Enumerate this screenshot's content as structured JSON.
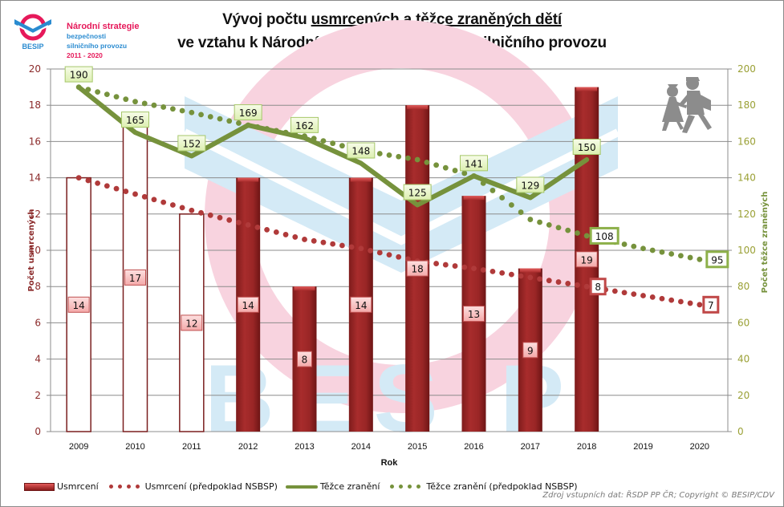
{
  "logo": {
    "brand": "BESIP",
    "line1": "Národní strategie",
    "line2": "bezpečnosti",
    "line3": "silničního provozu",
    "line4": "2011 - 2020"
  },
  "title_line1_plain": "Vývoj počtu ",
  "title_line1_underlined": "usmrcených a těžce zraněných dětí",
  "title_line2": "ve vztahu k Národní strategii bezpečnosti silničního provozu",
  "watermark_text": "BESIP",
  "source_note": "Zdroj vstupních dat: ŘSDP PP ČR; Copyright © BESIP/CDV",
  "colors": {
    "bar_fill": "#9b2424",
    "bar_outline": "#7a1f1f",
    "killed_forecast": "#b03a3a",
    "injured": "#76923c",
    "injured_label_bg": "#ebf5cf",
    "killed_label_bg": "#f7c1c1",
    "left_axis_text": "#8b2a2a",
    "right_axis_text": "#9aa035"
  },
  "chart_data": {
    "type": "bar",
    "title": "Vývoj počtu usmrcených a těžce zraněných dětí ve vztahu k Národní strategii bezpečnosti silničního provozu",
    "xlabel": "Rok",
    "ylabel": "Počet usmrcených",
    "y2label": "Počet těžce zraněných",
    "categories": [
      "2009",
      "2010",
      "2011",
      "2012",
      "2013",
      "2014",
      "2015",
      "2016",
      "2017",
      "2018",
      "2019",
      "2020"
    ],
    "ylim": [
      0,
      20
    ],
    "yticks": [
      "0",
      "2",
      "4",
      "6",
      "8",
      "10",
      "12",
      "14",
      "16",
      "18",
      "20"
    ],
    "y2lim": [
      0,
      200
    ],
    "y2ticks": [
      "0",
      "20",
      "40",
      "60",
      "80",
      "100",
      "120",
      "140",
      "160",
      "180",
      "200"
    ],
    "grid": true,
    "legend_position": "bottom",
    "series": [
      {
        "name": "Usmrcení",
        "kind": "bar",
        "axis": "left",
        "hollow_years": [
          "2009",
          "2010",
          "2011"
        ],
        "values": [
          14,
          17,
          12,
          14,
          8,
          14,
          18,
          13,
          9,
          19,
          null,
          null
        ],
        "labels": [
          "14",
          "17",
          "12",
          "14",
          "8",
          "14",
          "18",
          "13",
          "9",
          "19",
          "",
          ""
        ]
      },
      {
        "name": "Usmrcení (předpoklad NSBSP)",
        "kind": "dotted-line",
        "axis": "left",
        "values": [
          14,
          13.1,
          12.2,
          11.4,
          10.6,
          10.1,
          9.4,
          9.0,
          8.5,
          8,
          7.5,
          7
        ],
        "labels": [
          "",
          "",
          "",
          "",
          "",
          "",
          "",
          "",
          "",
          "8",
          "",
          "7"
        ]
      },
      {
        "name": "Těžce zranění",
        "kind": "line",
        "axis": "right",
        "values": [
          190,
          165,
          152,
          169,
          162,
          148,
          125,
          141,
          129,
          150,
          null,
          null
        ],
        "labels": [
          "190",
          "165",
          "152",
          "169",
          "162",
          "148",
          "125",
          "141",
          "129",
          "150",
          "",
          ""
        ]
      },
      {
        "name": "Těžce zranění (předpoklad NSBSP)",
        "kind": "dotted-line",
        "axis": "right",
        "values": [
          190,
          182,
          176,
          169,
          163,
          155,
          150,
          141,
          117,
          108,
          101,
          95
        ],
        "labels": [
          "",
          "",
          "",
          "",
          "",
          "",
          "",
          "",
          "",
          "108",
          "",
          "95"
        ]
      }
    ]
  }
}
